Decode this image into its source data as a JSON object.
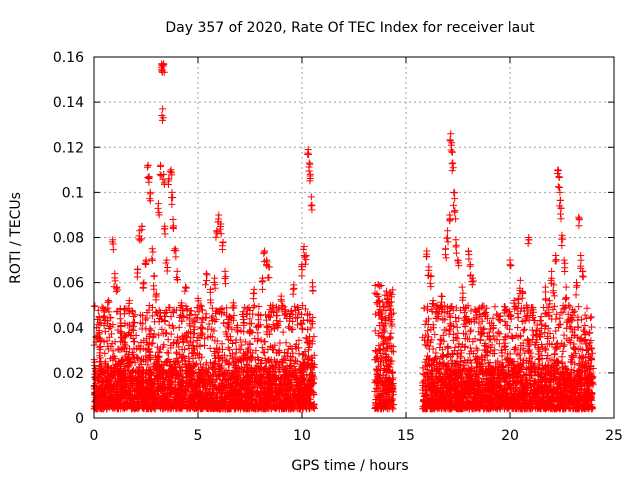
{
  "chart_data": {
    "type": "scatter",
    "title": "Day 357 of 2020, Rate Of TEC Index for receiver laut",
    "xlabel": "GPS time / hours",
    "ylabel": "ROTI / TECUs",
    "xlim": [
      0,
      25
    ],
    "ylim": [
      0,
      0.16
    ],
    "xticks": [
      0,
      5,
      10,
      15,
      20,
      25
    ],
    "xtick_labels": [
      "0",
      "5",
      "10",
      "15",
      "20",
      "25"
    ],
    "yticks": [
      0,
      0.02,
      0.04,
      0.06,
      0.08,
      0.1,
      0.12,
      0.14,
      0.16
    ],
    "ytick_labels": [
      "0",
      "0.02",
      "0.04",
      "0.06",
      "0.08",
      "0.1",
      "0.12",
      "0.14",
      "0.16"
    ],
    "grid": true,
    "marker": "+",
    "color": "#ff0000",
    "data_segments": [
      {
        "x_start": 0.0,
        "x_end": 10.6,
        "baseline": [
          0.004,
          0.03
        ]
      },
      {
        "x_start": 13.5,
        "x_end": 14.4,
        "baseline": [
          0.004,
          0.04
        ]
      },
      {
        "x_start": 15.8,
        "x_end": 24.0,
        "baseline": [
          0.004,
          0.03
        ]
      }
    ],
    "series": [
      {
        "name": "ROTI",
        "points": [
          [
            0.3,
            0.035
          ],
          [
            0.5,
            0.047
          ],
          [
            0.7,
            0.052
          ],
          [
            0.9,
            0.079
          ],
          [
            1.0,
            0.064
          ],
          [
            1.1,
            0.058
          ],
          [
            1.3,
            0.041
          ],
          [
            1.5,
            0.036
          ],
          [
            1.7,
            0.052
          ],
          [
            1.9,
            0.045
          ],
          [
            2.1,
            0.066
          ],
          [
            2.2,
            0.083
          ],
          [
            2.3,
            0.085
          ],
          [
            2.4,
            0.06
          ],
          [
            2.5,
            0.07
          ],
          [
            2.6,
            0.112
          ],
          [
            2.65,
            0.107
          ],
          [
            2.7,
            0.1
          ],
          [
            2.8,
            0.075
          ],
          [
            2.9,
            0.063
          ],
          [
            3.0,
            0.055
          ],
          [
            3.1,
            0.095
          ],
          [
            3.2,
            0.112
          ],
          [
            3.25,
            0.157
          ],
          [
            3.3,
            0.156
          ],
          [
            3.35,
            0.157
          ],
          [
            3.3,
            0.137
          ],
          [
            3.35,
            0.108
          ],
          [
            3.4,
            0.085
          ],
          [
            3.5,
            0.07
          ],
          [
            3.6,
            0.106
          ],
          [
            3.7,
            0.11
          ],
          [
            3.75,
            0.1
          ],
          [
            3.8,
            0.088
          ],
          [
            3.9,
            0.075
          ],
          [
            4.0,
            0.065
          ],
          [
            4.2,
            0.051
          ],
          [
            4.4,
            0.058
          ],
          [
            4.6,
            0.046
          ],
          [
            4.8,
            0.043
          ],
          [
            5.0,
            0.053
          ],
          [
            5.2,
            0.048
          ],
          [
            5.4,
            0.064
          ],
          [
            5.6,
            0.057
          ],
          [
            5.8,
            0.062
          ],
          [
            5.9,
            0.083
          ],
          [
            6.0,
            0.09
          ],
          [
            6.1,
            0.086
          ],
          [
            6.2,
            0.078
          ],
          [
            6.3,
            0.065
          ],
          [
            6.5,
            0.045
          ],
          [
            6.7,
            0.051
          ],
          [
            6.9,
            0.041
          ],
          [
            7.2,
            0.045
          ],
          [
            7.5,
            0.039
          ],
          [
            7.7,
            0.057
          ],
          [
            7.9,
            0.046
          ],
          [
            8.1,
            0.062
          ],
          [
            8.2,
            0.074
          ],
          [
            8.3,
            0.07
          ],
          [
            8.4,
            0.067
          ],
          [
            8.6,
            0.05
          ],
          [
            8.8,
            0.047
          ],
          [
            9.0,
            0.054
          ],
          [
            9.2,
            0.048
          ],
          [
            9.4,
            0.045
          ],
          [
            9.6,
            0.059
          ],
          [
            9.8,
            0.049
          ],
          [
            10.0,
            0.068
          ],
          [
            10.1,
            0.076
          ],
          [
            10.2,
            0.072
          ],
          [
            10.3,
            0.119
          ],
          [
            10.35,
            0.113
          ],
          [
            10.4,
            0.108
          ],
          [
            10.45,
            0.098
          ],
          [
            10.5,
            0.06
          ],
          [
            13.6,
            0.055
          ],
          [
            13.7,
            0.052
          ],
          [
            13.8,
            0.047
          ],
          [
            13.9,
            0.041
          ],
          [
            14.0,
            0.044
          ],
          [
            14.1,
            0.053
          ],
          [
            14.2,
            0.051
          ],
          [
            14.3,
            0.046
          ],
          [
            16.0,
            0.074
          ],
          [
            16.1,
            0.067
          ],
          [
            16.2,
            0.063
          ],
          [
            16.3,
            0.052
          ],
          [
            16.5,
            0.05
          ],
          [
            16.7,
            0.054
          ],
          [
            16.9,
            0.075
          ],
          [
            17.0,
            0.083
          ],
          [
            17.1,
            0.09
          ],
          [
            17.15,
            0.126
          ],
          [
            17.2,
            0.122
          ],
          [
            17.25,
            0.113
          ],
          [
            17.3,
            0.1
          ],
          [
            17.35,
            0.092
          ],
          [
            17.4,
            0.079
          ],
          [
            17.5,
            0.07
          ],
          [
            17.7,
            0.058
          ],
          [
            17.9,
            0.045
          ],
          [
            18.0,
            0.074
          ],
          [
            18.1,
            0.068
          ],
          [
            18.2,
            0.062
          ],
          [
            18.4,
            0.047
          ],
          [
            18.6,
            0.04
          ],
          [
            18.8,
            0.033
          ],
          [
            19.0,
            0.038
          ],
          [
            19.2,
            0.041
          ],
          [
            19.5,
            0.045
          ],
          [
            19.8,
            0.036
          ],
          [
            20.0,
            0.07
          ],
          [
            20.2,
            0.052
          ],
          [
            20.4,
            0.053
          ],
          [
            20.5,
            0.061
          ],
          [
            20.6,
            0.056
          ],
          [
            20.8,
            0.05
          ],
          [
            20.9,
            0.08
          ],
          [
            21.1,
            0.048
          ],
          [
            21.3,
            0.039
          ],
          [
            21.5,
            0.045
          ],
          [
            21.7,
            0.058
          ],
          [
            21.9,
            0.052
          ],
          [
            22.0,
            0.065
          ],
          [
            22.1,
            0.059
          ],
          [
            22.2,
            0.072
          ],
          [
            22.3,
            0.11
          ],
          [
            22.35,
            0.107
          ],
          [
            22.4,
            0.1
          ],
          [
            22.45,
            0.093
          ],
          [
            22.5,
            0.081
          ],
          [
            22.6,
            0.07
          ],
          [
            22.7,
            0.058
          ],
          [
            22.8,
            0.046
          ],
          [
            22.9,
            0.044
          ],
          [
            23.0,
            0.048
          ],
          [
            23.2,
            0.06
          ],
          [
            23.3,
            0.089
          ],
          [
            23.4,
            0.072
          ],
          [
            23.5,
            0.065
          ],
          [
            23.6,
            0.041
          ],
          [
            23.8,
            0.032
          ],
          [
            23.9,
            0.031
          ]
        ]
      }
    ]
  }
}
